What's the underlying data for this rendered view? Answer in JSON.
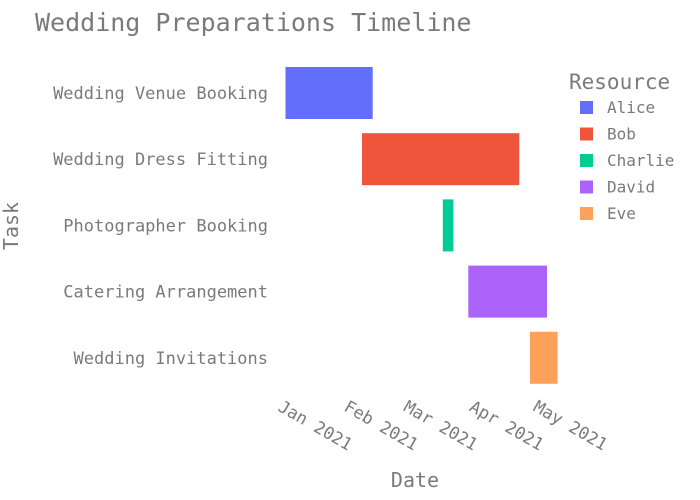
{
  "chart_data": {
    "type": "gantt",
    "title": "Wedding Preparations Timeline",
    "xlabel": "Date",
    "ylabel": "Task",
    "x_ticks": [
      "Jan 2021",
      "Feb 2021",
      "Mar 2021",
      "Apr 2021",
      "May 2021"
    ],
    "legend": {
      "title": "Resource",
      "placement": "top-right",
      "entries": [
        {
          "name": "Alice",
          "color": "#636efa"
        },
        {
          "name": "Bob",
          "color": "#ef553b"
        },
        {
          "name": "Charlie",
          "color": "#00cc96"
        },
        {
          "name": "David",
          "color": "#ab63fa"
        },
        {
          "name": "Eve",
          "color": "#ffa15a"
        }
      ]
    },
    "tasks": [
      {
        "task": "Wedding Venue Booking",
        "start": "2021-01-05",
        "end": "2021-02-15",
        "resource": "Alice"
      },
      {
        "task": "Wedding Dress Fitting",
        "start": "2021-02-10",
        "end": "2021-04-25",
        "resource": "Bob"
      },
      {
        "task": "Photographer Booking",
        "start": "2021-03-20",
        "end": "2021-03-25",
        "resource": "Charlie"
      },
      {
        "task": "Catering Arrangement",
        "start": "2021-04-01",
        "end": "2021-05-08",
        "resource": "David"
      },
      {
        "task": "Wedding Invitations",
        "start": "2021-04-30",
        "end": "2021-05-13",
        "resource": "Eve"
      }
    ]
  }
}
